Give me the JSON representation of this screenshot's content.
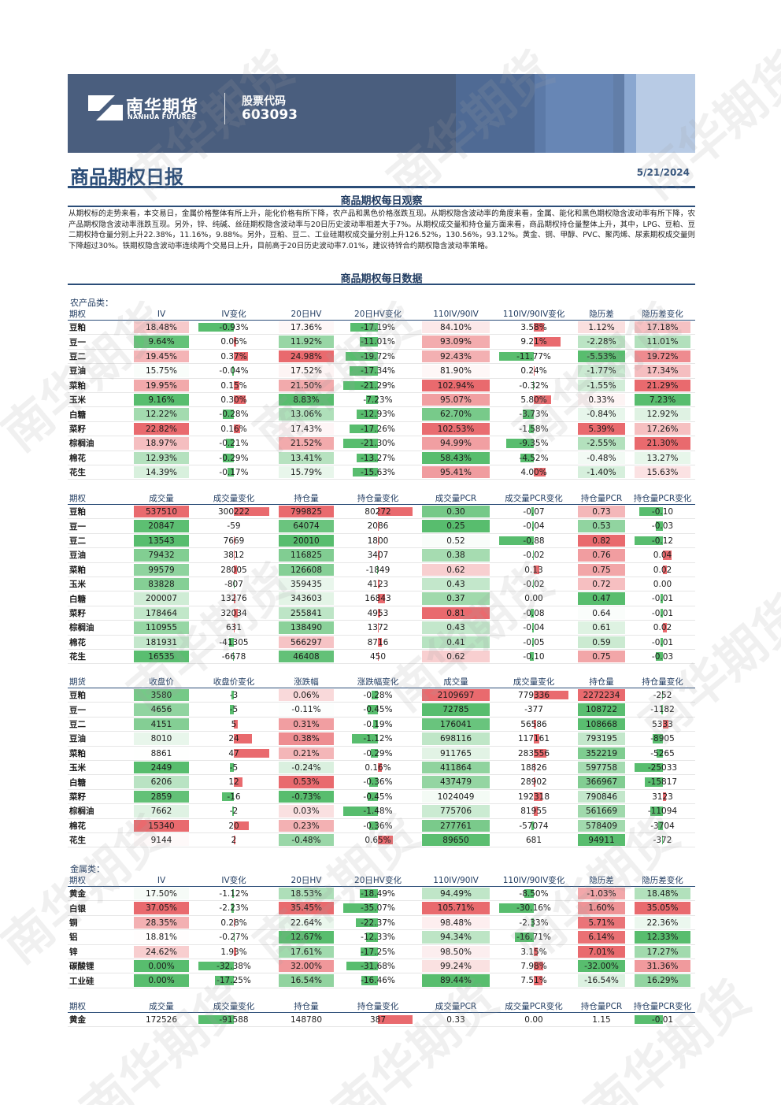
{
  "brand": {
    "name_cn": "南华期货",
    "name_en": "NANHUA FUTURES",
    "stock_label": "股票代码",
    "stock_code": "603093"
  },
  "report": {
    "title": "商品期权日报",
    "date": "5/21/2024"
  },
  "observation": {
    "heading": "商品期权每日观察",
    "text": "从期权标的走势来看，本交易日，金属价格整体有所上升，能化价格有所下降，农产品和黑色价格涨跌互现。从期权隐含波动率的角度来看，金属、能化和黑色期权隐含波动率有所下降，农产品期权隐含波动率涨跌互现。另外，锌、纯碱、丝硅期权隐含波动率与20日历史波动率相差大于7%。从期权成交量和持仓量方面来看，商品期权持仓量整体上升，其中，LPG、豆粕、豆二期权持仓量分别上升22.38%，11.16%，9.88%。另外，豆粕、豆二、工业硅期权成交量分别上升126.52%，130.56%，93.12%。黄金、铜、甲醇、PVC、聚丙烯、尿素期权成交量则下降超过30%。铁期权隐含波动率连续两个交易日上升，目前高于20日历史波动率7.01%，建议待锌合约期权隐含波动率策略。"
  },
  "data_heading": "商品期权每日数据",
  "colors": {
    "green": "#58bd6e",
    "green_light": "#d4efd8",
    "red": "#e96a6e",
    "red_light": "#f8d2d3",
    "navy": "#2b4d78"
  },
  "watermark": "南华期货",
  "tables": [
    {
      "category": "农产品类：",
      "headers": [
        "期权",
        "IV",
        "IV变化",
        "20日HV",
        "20日HV变化",
        "110IV/90IV",
        "110IV/90IV变化",
        "隐历差",
        "隐历差变化"
      ],
      "col_types": [
        "name",
        "heat",
        "bar",
        "heat",
        "bar",
        "heat",
        "bar",
        "heat",
        "heat"
      ],
      "rows": [
        [
          "豆粕",
          "18.48%",
          "-0.93%",
          "17.36%",
          "-17.19%",
          "84.10%",
          "3.58%",
          "1.12%",
          "17.18%"
        ],
        [
          "豆一",
          "9.64%",
          "0.06%",
          "11.92%",
          "-11.01%",
          "93.09%",
          "9.21%",
          "-2.28%",
          "11.01%"
        ],
        [
          "豆二",
          "19.45%",
          "0.37%",
          "24.98%",
          "-19.72%",
          "92.43%",
          "-11.77%",
          "-5.53%",
          "19.72%"
        ],
        [
          "豆油",
          "15.75%",
          "-0.04%",
          "17.52%",
          "-17.34%",
          "81.90%",
          "0.24%",
          "-1.77%",
          "17.34%"
        ],
        [
          "菜粕",
          "19.95%",
          "0.15%",
          "21.50%",
          "-21.29%",
          "102.94%",
          "-0.32%",
          "-1.55%",
          "21.29%"
        ],
        [
          "玉米",
          "9.16%",
          "0.30%",
          "8.83%",
          "-7.23%",
          "95.07%",
          "5.80%",
          "0.33%",
          "7.23%"
        ],
        [
          "白糖",
          "12.22%",
          "-0.28%",
          "13.06%",
          "-12.93%",
          "62.70%",
          "-3.73%",
          "-0.84%",
          "12.92%"
        ],
        [
          "菜籽",
          "22.82%",
          "0.16%",
          "17.43%",
          "-17.26%",
          "102.53%",
          "-1.58%",
          "5.39%",
          "17.26%"
        ],
        [
          "棕榈油",
          "18.97%",
          "-0.21%",
          "21.52%",
          "-21.30%",
          "94.99%",
          "-9.35%",
          "-2.55%",
          "21.30%"
        ],
        [
          "棉花",
          "12.93%",
          "-0.29%",
          "13.41%",
          "-13.27%",
          "58.43%",
          "-4.52%",
          "-0.48%",
          "13.27%"
        ],
        [
          "花生",
          "14.39%",
          "-0.17%",
          "15.79%",
          "-15.63%",
          "95.41%",
          "4.00%",
          "-1.40%",
          "15.63%"
        ]
      ]
    },
    {
      "category": "",
      "headers": [
        "期权",
        "成交量",
        "成交量变化",
        "持仓量",
        "持仓量变化",
        "成交量PCR",
        "成交量PCR变化",
        "持仓量PCR",
        "持仓量PCR变化"
      ],
      "col_types": [
        "name",
        "heat",
        "bar",
        "heat",
        "bar",
        "heat",
        "bar",
        "heat",
        "bar"
      ],
      "rows": [
        [
          "豆粕",
          "537510",
          "300222",
          "799825",
          "80272",
          "0.30",
          "-0.07",
          "0.73",
          "-0.10"
        ],
        [
          "豆一",
          "20847",
          "-59",
          "64074",
          "2086",
          "0.25",
          "-0.04",
          "0.53",
          "-0.03"
        ],
        [
          "豆二",
          "13543",
          "7669",
          "20010",
          "1800",
          "0.52",
          "-0.88",
          "0.82",
          "-0.12"
        ],
        [
          "豆油",
          "79432",
          "3812",
          "116825",
          "3407",
          "0.38",
          "-0.02",
          "0.76",
          "0.04"
        ],
        [
          "菜粕",
          "99579",
          "28005",
          "126608",
          "-1849",
          "0.62",
          "0.13",
          "0.75",
          "0.02"
        ],
        [
          "玉米",
          "83828",
          "-807",
          "359435",
          "4123",
          "0.43",
          "-0.02",
          "0.72",
          "0.00"
        ],
        [
          "白糖",
          "200007",
          "13276",
          "343603",
          "16843",
          "0.37",
          "0.00",
          "0.47",
          "-0.01"
        ],
        [
          "菜籽",
          "178464",
          "32034",
          "255841",
          "4953",
          "0.81",
          "-0.08",
          "0.64",
          "-0.01"
        ],
        [
          "棕榈油",
          "110955",
          "631",
          "138490",
          "1372",
          "0.43",
          "-0.04",
          "0.61",
          "0.02"
        ],
        [
          "棉花",
          "181931",
          "-41305",
          "566297",
          "8716",
          "0.41",
          "-0.05",
          "0.59",
          "-0.01"
        ],
        [
          "花生",
          "16535",
          "-6678",
          "46408",
          "450",
          "0.62",
          "-0.10",
          "0.75",
          "-0.03"
        ]
      ]
    },
    {
      "category": "",
      "headers": [
        "期货",
        "收盘价",
        "收盘价变化",
        "涨跌幅",
        "涨跌幅变化",
        "成交量",
        "成交量变化",
        "持仓量",
        "持仓量变化"
      ],
      "col_types": [
        "name",
        "heat",
        "bar",
        "heat",
        "bar",
        "heat",
        "bar",
        "heat",
        "bar"
      ],
      "rows": [
        [
          "豆粕",
          "3580",
          "-3",
          "0.06%",
          "-0.28%",
          "2109697",
          "779336",
          "2272234",
          "-252"
        ],
        [
          "豆一",
          "4656",
          "-5",
          "-0.11%",
          "-0.45%",
          "72785",
          "-377",
          "108722",
          "-1182"
        ],
        [
          "豆二",
          "4151",
          "5",
          "0.31%",
          "-0.19%",
          "176041",
          "56586",
          "108668",
          "5333"
        ],
        [
          "豆油",
          "8010",
          "24",
          "0.38%",
          "-1.12%",
          "698116",
          "117161",
          "793195",
          "-8905"
        ],
        [
          "菜粕",
          "8861",
          "47",
          "0.21%",
          "-0.29%",
          "911765",
          "283556",
          "352219",
          "-5265"
        ],
        [
          "玉米",
          "2449",
          "-5",
          "-0.24%",
          "0.16%",
          "411864",
          "18826",
          "597758",
          "-25033"
        ],
        [
          "白糖",
          "6206",
          "12",
          "0.53%",
          "-0.36%",
          "437479",
          "28902",
          "366967",
          "-15817"
        ],
        [
          "菜籽",
          "2859",
          "-16",
          "-0.73%",
          "-0.45%",
          "1024049",
          "192318",
          "790846",
          "3123"
        ],
        [
          "棕榈油",
          "7662",
          "-2",
          "0.03%",
          "-1.48%",
          "775706",
          "81955",
          "561669",
          "-11094"
        ],
        [
          "棉花",
          "15340",
          "20",
          "0.23%",
          "-0.36%",
          "277761",
          "-57074",
          "578409",
          "-3704"
        ],
        [
          "花生",
          "9144",
          "2",
          "-0.48%",
          "0.65%",
          "89650",
          "681",
          "94911",
          "-372"
        ]
      ]
    },
    {
      "category": "金属类：",
      "headers": [
        "期权",
        "IV",
        "IV变化",
        "20日HV",
        "20日HV变化",
        "110IV/90IV",
        "110IV/90IV变化",
        "隐历差",
        "隐历差变化"
      ],
      "col_types": [
        "name",
        "heat",
        "bar",
        "heat",
        "bar",
        "heat",
        "bar",
        "heat",
        "heat"
      ],
      "rows": [
        [
          "黄金",
          "17.50%",
          "-1.12%",
          "18.53%",
          "-18.49%",
          "94.49%",
          "-8.50%",
          "-1.03%",
          "18.48%"
        ],
        [
          "白银",
          "37.05%",
          "-2.23%",
          "35.45%",
          "-35.07%",
          "105.71%",
          "-30.16%",
          "1.60%",
          "35.05%"
        ],
        [
          "铜",
          "28.35%",
          "0.28%",
          "22.64%",
          "-22.37%",
          "98.48%",
          "-2.33%",
          "5.71%",
          "22.36%"
        ],
        [
          "铝",
          "18.81%",
          "-0.27%",
          "12.67%",
          "-12.33%",
          "94.34%",
          "-16.71%",
          "6.14%",
          "12.33%"
        ],
        [
          "锌",
          "24.62%",
          "1.93%",
          "17.61%",
          "-17.25%",
          "98.50%",
          "3.15%",
          "7.01%",
          "17.27%"
        ],
        [
          "碳酸锂",
          "0.00%",
          "-32.38%",
          "32.00%",
          "-31.68%",
          "99.24%",
          "7.98%",
          "-32.00%",
          "31.36%"
        ],
        [
          "工业硅",
          "0.00%",
          "-17.25%",
          "16.54%",
          "-16.46%",
          "89.44%",
          "7.51%",
          "-16.54%",
          "16.29%"
        ]
      ]
    },
    {
      "category": "",
      "headers": [
        "期权",
        "成交量",
        "成交量变化",
        "持仓量",
        "持仓量变化",
        "成交量PCR",
        "成交量PCR变化",
        "持仓量PCR",
        "持仓量PCR变化"
      ],
      "col_types": [
        "name",
        "heat",
        "bar",
        "heat",
        "bar",
        "heat",
        "bar",
        "heat",
        "bar"
      ],
      "rows": [
        [
          "黄金",
          "172526",
          "-91588",
          "148780",
          "387",
          "0.33",
          "0.00",
          "1.15",
          "-0.01"
        ]
      ]
    }
  ]
}
